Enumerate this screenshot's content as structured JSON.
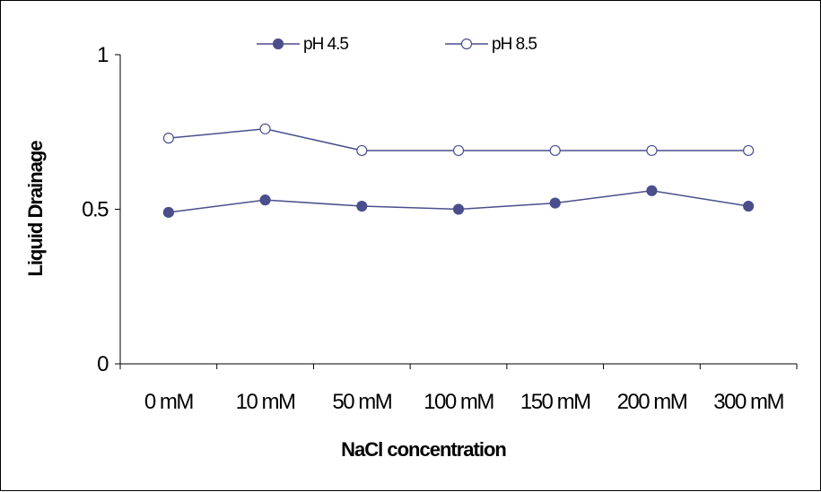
{
  "chart_data": {
    "type": "line",
    "title": "",
    "xlabel": "NaCl concentration",
    "ylabel": "Liquid Drainage",
    "categories": [
      "0 mM",
      "10 mM",
      "50 mM",
      "100 mM",
      "150 mM",
      "200 mM",
      "300 mM"
    ],
    "ylim": [
      0,
      1
    ],
    "yticks": [
      0,
      0.5,
      1
    ],
    "ytick_labels": [
      "0",
      "0.5",
      "1"
    ],
    "grid": false,
    "legend_position": "top",
    "series": [
      {
        "name": "pH 4.5",
        "marker": "filled-circle",
        "color": "#4a4f8c",
        "values": [
          0.49,
          0.53,
          0.51,
          0.5,
          0.52,
          0.56,
          0.51
        ]
      },
      {
        "name": "pH 8.5",
        "marker": "open-circle",
        "color": "#4a4f8c",
        "values": [
          0.73,
          0.76,
          0.69,
          0.69,
          0.69,
          0.69,
          0.69
        ]
      }
    ]
  }
}
